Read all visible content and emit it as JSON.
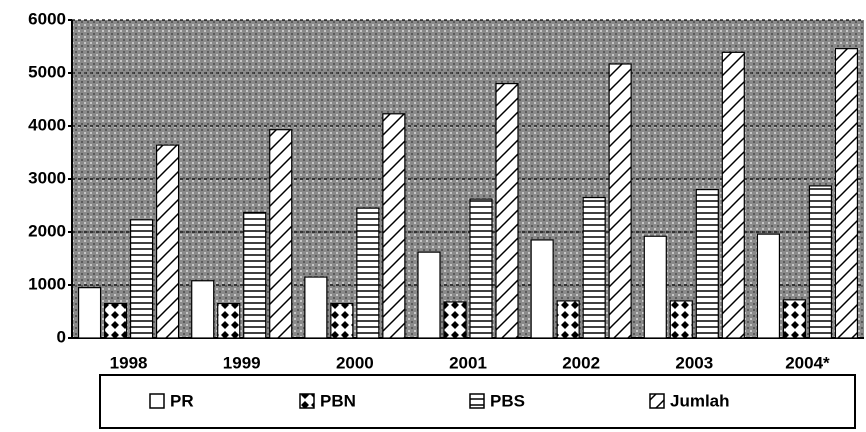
{
  "chart_data": {
    "type": "bar",
    "categories": [
      "1998",
      "1999",
      "2000",
      "2001",
      "2002",
      "2003",
      "2004*"
    ],
    "series": [
      {
        "name": "PR",
        "color": "#ffffff",
        "pattern": "none",
        "values": [
          950,
          1080,
          1150,
          1620,
          1850,
          1920,
          1960
        ]
      },
      {
        "name": "PBN",
        "color": "#ffffff",
        "pattern": "diamond",
        "values": [
          650,
          650,
          650,
          680,
          700,
          700,
          720
        ]
      },
      {
        "name": "PBS",
        "color": "#ffffff",
        "pattern": "horizontal",
        "values": [
          2230,
          2370,
          2450,
          2620,
          2650,
          2800,
          2870
        ]
      },
      {
        "name": "Jumlah",
        "color": "#ffffff",
        "pattern": "crosshatch",
        "values": [
          3640,
          3930,
          4230,
          4800,
          5170,
          5390,
          5460
        ]
      }
    ],
    "ylim": [
      0,
      6000
    ],
    "yticks": [
      0,
      1000,
      2000,
      3000,
      4000,
      5000,
      6000
    ],
    "grid": true,
    "legend": "bottom"
  }
}
